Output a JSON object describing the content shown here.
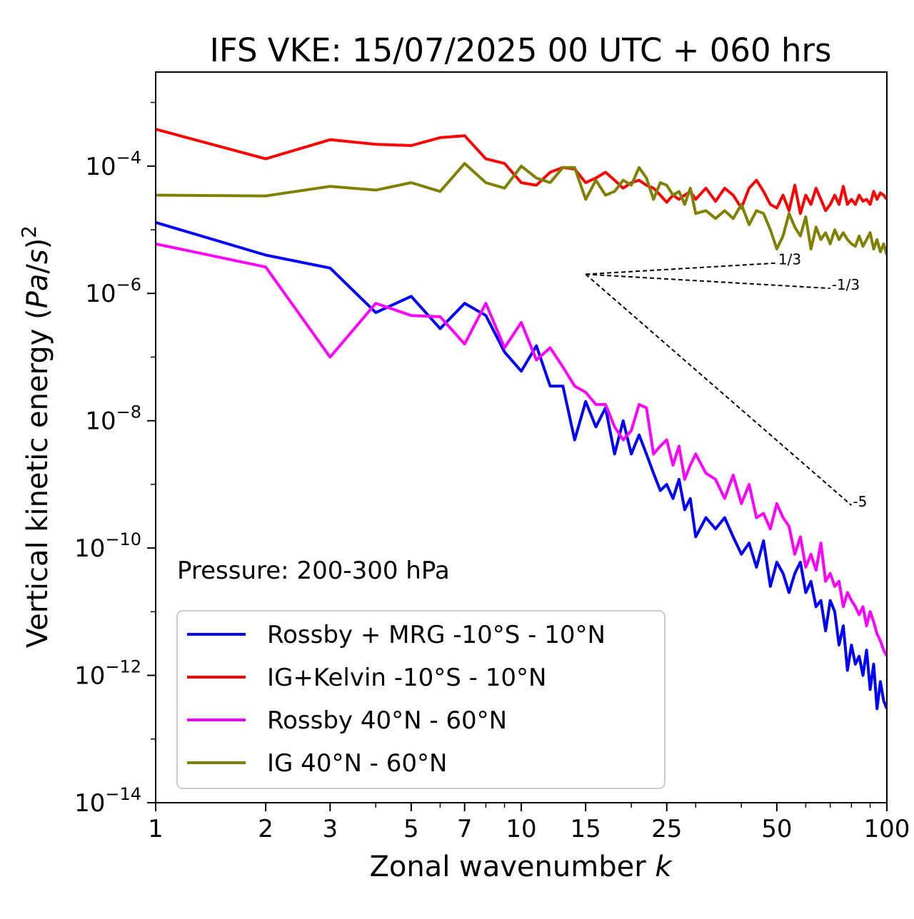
{
  "chart_data": {
    "type": "line",
    "title": "IFS VKE: 15/07/2025 00 UTC + 060 hrs",
    "xlabel": "Zonal wavenumber k",
    "ylabel": "Vertical kinetic energy (Pa/s)²",
    "xscale": "log",
    "yscale": "log",
    "xlim": [
      1,
      100
    ],
    "ylim": [
      1e-14,
      0.003
    ],
    "xticks": [
      1,
      2,
      3,
      5,
      7,
      10,
      15,
      25,
      50,
      100
    ],
    "xtick_labels": [
      "1",
      "2",
      "3",
      "5",
      "7",
      "10",
      "15",
      "25",
      "50",
      "100"
    ],
    "yticks": [
      -14,
      -12,
      -10,
      -8,
      -6,
      -4
    ],
    "ytick_labels": [
      "10−14",
      "10−12",
      "10−10",
      "10−8",
      "10−6",
      "10−4"
    ],
    "annotation": "Pressure: 200-300 hPa",
    "legend_location": "lower-left",
    "grid": false,
    "reference_slopes": [
      {
        "label": "1/3",
        "x": [
          15,
          50
        ],
        "y": [
          2e-06,
          3e-06
        ]
      },
      {
        "label": "-1/3",
        "x": [
          15,
          70
        ],
        "y": [
          2e-06,
          1.2e-06
        ]
      },
      {
        "label": "-5",
        "x": [
          15,
          80
        ],
        "y": [
          2e-06,
          4.7e-10
        ]
      }
    ],
    "series": [
      {
        "name": "Rossby + MRG -10°S - 10°N",
        "color": "#0000ff",
        "x": [
          1,
          2,
          3,
          4,
          5,
          6,
          7,
          8,
          9,
          10,
          11,
          12,
          13,
          14,
          15,
          16,
          17,
          18,
          19,
          20,
          21,
          22,
          23,
          24,
          25,
          26,
          27,
          28,
          29,
          30,
          32,
          34,
          36,
          38,
          40,
          42,
          44,
          46,
          48,
          50,
          52,
          54,
          56,
          58,
          60,
          62,
          64,
          66,
          68,
          70,
          72,
          74,
          76,
          78,
          80,
          82,
          84,
          86,
          88,
          90,
          92,
          94,
          96,
          98,
          100
        ],
        "y": [
          1.3e-05,
          4e-06,
          2.5e-06,
          5e-07,
          9e-07,
          2.8e-07,
          7e-07,
          4.5e-07,
          1.2e-07,
          6e-08,
          1.5e-07,
          3.5e-08,
          3.5e-08,
          5e-09,
          2e-08,
          8e-09,
          1.6e-08,
          3e-09,
          1e-08,
          3e-09,
          6e-09,
          3e-09,
          1.5e-09,
          8e-10,
          1e-09,
          6e-10,
          1.2e-09,
          4e-10,
          6e-10,
          1.5e-10,
          3e-10,
          2e-10,
          3e-10,
          1.5e-10,
          8e-11,
          1.2e-10,
          5e-11,
          1.3e-10,
          2.5e-11,
          6e-11,
          4e-11,
          2e-11,
          4e-11,
          6e-11,
          2e-11,
          3e-11,
          1.2e-11,
          1.5e-11,
          5e-12,
          1.5e-11,
          1e-11,
          3e-12,
          6e-12,
          1.2e-12,
          3e-12,
          1.5e-12,
          2e-12,
          1e-12,
          2.5e-12,
          6e-13,
          1.5e-12,
          3e-13,
          8e-13,
          4e-13,
          3e-13
        ]
      },
      {
        "name": "IG+Kelvin -10°S - 10°N",
        "color": "#ff0000",
        "x": [
          1,
          2,
          3,
          4,
          5,
          6,
          7,
          8,
          9,
          10,
          11,
          12,
          13,
          14,
          15,
          16,
          17,
          18,
          19,
          20,
          21,
          22,
          23,
          24,
          25,
          26,
          27,
          28,
          29,
          30,
          32,
          34,
          36,
          38,
          40,
          42,
          44,
          46,
          48,
          50,
          52,
          54,
          56,
          58,
          60,
          62,
          64,
          66,
          68,
          70,
          72,
          74,
          76,
          78,
          80,
          82,
          84,
          86,
          88,
          90,
          92,
          94,
          96,
          98,
          100
        ],
        "y": [
          0.00038,
          0.00013,
          0.00026,
          0.00022,
          0.00021,
          0.00028,
          0.0003,
          0.00013,
          0.00011,
          5.5e-05,
          5e-05,
          8e-05,
          9.5e-05,
          9e-05,
          5.5e-05,
          6.5e-05,
          8e-05,
          6e-05,
          4.5e-05,
          5.5e-05,
          6e-05,
          5e-05,
          4.5e-05,
          3.5e-05,
          2.7e-05,
          3.5e-05,
          3e-05,
          3.5e-05,
          4e-05,
          3e-05,
          4.5e-05,
          2.8e-05,
          4.5e-05,
          3.5e-05,
          2.2e-05,
          4.5e-05,
          6e-05,
          4e-05,
          2.5e-05,
          2.2e-05,
          3.5e-05,
          2e-05,
          5e-05,
          1.8e-05,
          3.5e-05,
          2.5e-05,
          4.5e-05,
          3e-05,
          2e-05,
          2.5e-05,
          3.5e-05,
          2.5e-05,
          4.8e-05,
          2.5e-05,
          3e-05,
          2.5e-05,
          3.5e-05,
          2.8e-05,
          3e-05,
          2.5e-05,
          4e-05,
          3e-05,
          3.8e-05,
          3.5e-05,
          3e-05
        ]
      },
      {
        "name": "Rossby 40°N - 60°N",
        "color": "#ff00ff",
        "x": [
          1,
          2,
          3,
          4,
          5,
          6,
          7,
          8,
          9,
          10,
          11,
          12,
          13,
          14,
          15,
          16,
          17,
          18,
          19,
          20,
          21,
          22,
          23,
          24,
          25,
          26,
          27,
          28,
          29,
          30,
          32,
          34,
          36,
          38,
          40,
          42,
          44,
          46,
          48,
          50,
          52,
          54,
          56,
          58,
          60,
          62,
          64,
          66,
          68,
          70,
          72,
          74,
          76,
          78,
          80,
          82,
          84,
          86,
          88,
          90,
          92,
          94,
          96,
          98,
          100
        ],
        "y": [
          6e-06,
          2.6e-06,
          1e-07,
          7e-07,
          4.5e-07,
          4.3e-07,
          1.6e-07,
          7e-07,
          1.4e-07,
          3.5e-07,
          9e-08,
          1.4e-07,
          7e-08,
          3.5e-08,
          2.8e-08,
          1.8e-08,
          1.8e-08,
          8e-09,
          5e-09,
          7e-09,
          1.8e-08,
          1.6e-08,
          3e-09,
          4e-09,
          5e-09,
          2e-09,
          4e-09,
          1.2e-09,
          2e-09,
          3e-09,
          1.5e-09,
          1.2e-09,
          6e-10,
          1.4e-09,
          5e-10,
          1e-09,
          3e-10,
          3.5e-10,
          2e-10,
          5e-10,
          3e-10,
          2.2e-10,
          8e-11,
          1.5e-10,
          5e-11,
          8e-11,
          4.5e-11,
          1.2e-10,
          3e-11,
          4e-11,
          2.5e-11,
          3e-11,
          1.2e-11,
          2e-11,
          1.5e-11,
          1.2e-11,
          9e-12,
          1.2e-11,
          6e-12,
          1e-11,
          7e-12,
          4.5e-12,
          3.5e-12,
          2.5e-12,
          2e-12
        ]
      },
      {
        "name": "IG 40°N - 60°N",
        "color": "#808000",
        "x": [
          1,
          2,
          3,
          4,
          5,
          6,
          7,
          8,
          9,
          10,
          11,
          12,
          13,
          14,
          15,
          16,
          17,
          18,
          19,
          20,
          21,
          22,
          23,
          24,
          25,
          26,
          27,
          28,
          29,
          30,
          32,
          34,
          36,
          38,
          40,
          42,
          44,
          46,
          48,
          50,
          52,
          54,
          56,
          58,
          60,
          62,
          64,
          66,
          68,
          70,
          72,
          74,
          76,
          78,
          80,
          82,
          84,
          86,
          88,
          90,
          92,
          94,
          96,
          98,
          100
        ],
        "y": [
          3.5e-05,
          3.4e-05,
          4.8e-05,
          4.2e-05,
          5.5e-05,
          4e-05,
          0.00011,
          5.5e-05,
          4.5e-05,
          0.0001,
          6.5e-05,
          5.5e-05,
          9.5e-05,
          9.5e-05,
          3e-05,
          6e-05,
          3.5e-05,
          4e-05,
          6e-05,
          5e-05,
          9.5e-05,
          6.5e-05,
          3e-05,
          5.5e-05,
          5e-05,
          3.5e-05,
          4e-05,
          2.5e-05,
          4.5e-05,
          1.8e-05,
          2e-05,
          1.5e-05,
          2e-05,
          1.5e-05,
          2.5e-05,
          1.2e-05,
          2e-05,
          1.8e-05,
          1e-05,
          5e-06,
          8e-06,
          1.8e-05,
          1.1e-05,
          8e-06,
          1.6e-05,
          5e-06,
          1.1e-05,
          7e-06,
          9e-06,
          6e-06,
          1e-05,
          7e-06,
          9e-06,
          7e-06,
          6e-06,
          5.5e-06,
          8e-06,
          5.5e-06,
          7e-06,
          9e-06,
          5e-06,
          7e-06,
          4.5e-06,
          6e-06,
          4e-06
        ]
      }
    ]
  }
}
